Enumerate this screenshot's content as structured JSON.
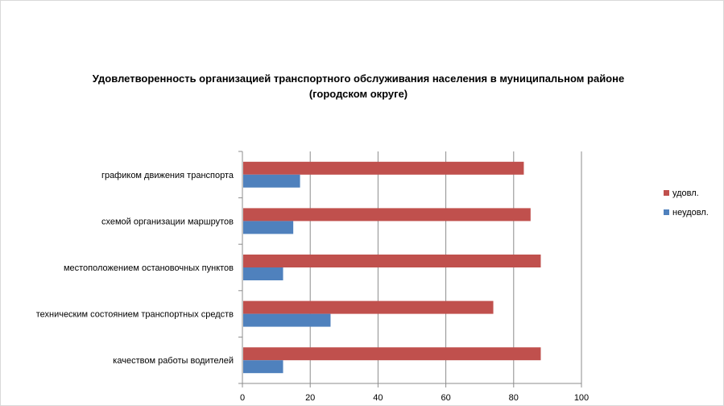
{
  "chart_data": {
    "type": "bar",
    "orientation": "horizontal",
    "title_line1": "Удовлетворенность организацией транспортного обслуживания населения в муниципальном районе",
    "title_line2": "(городском округе)",
    "categories": [
      "графиком  движения  транспорта",
      "схемой организации маршрутов",
      "местоположением  остановочных пунктов",
      "техническим  состоянием транспортных средств",
      "качеством  работы водителей"
    ],
    "series": [
      {
        "name": "удовл.",
        "color": "#c0504d",
        "values": [
          83,
          85,
          88,
          74,
          88
        ]
      },
      {
        "name": "неудовл.",
        "color": "#4f81bd",
        "values": [
          17,
          15,
          12,
          26,
          12
        ]
      }
    ],
    "xlim": [
      0,
      100
    ],
    "xticks": [
      0,
      20,
      40,
      60,
      80,
      100
    ],
    "xtick_labels": [
      "0",
      "20",
      "40",
      "60",
      "80",
      "100"
    ],
    "grid": "vertical",
    "legend_position": "right"
  }
}
